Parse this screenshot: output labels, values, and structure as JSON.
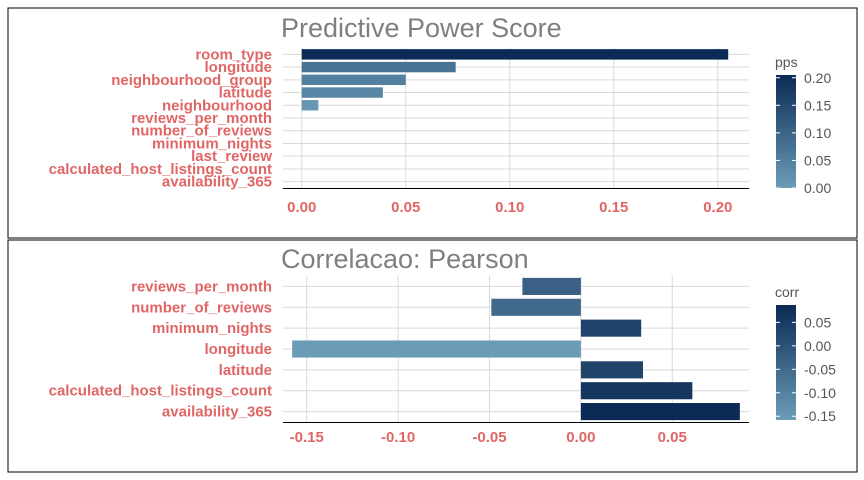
{
  "colors": {
    "low": "#6b9cb7",
    "high": "#0b2a55",
    "label": "#e06666",
    "title": "#7f7f7f"
  },
  "chart_data": [
    {
      "type": "bar",
      "orientation": "horizontal",
      "title": "Predictive Power Score",
      "categories": [
        "room_type",
        "longitude",
        "neighbourhood_group",
        "latitude",
        "neighbourhood",
        "reviews_per_month",
        "number_of_reviews",
        "minimum_nights",
        "last_review",
        "calculated_host_listings_count",
        "availability_365"
      ],
      "values": [
        0.205,
        0.074,
        0.05,
        0.039,
        0.008,
        0,
        0,
        0,
        0,
        0,
        0
      ],
      "xlim": [
        -0.009,
        0.215
      ],
      "xticks": [
        0.0,
        0.05,
        0.1,
        0.15,
        0.2
      ],
      "xtick_labels": [
        "0.00",
        "0.05",
        "0.10",
        "0.15",
        "0.20"
      ],
      "grid": true,
      "legend": {
        "title": "pps",
        "position": "right",
        "range": [
          0.0,
          0.205
        ],
        "ticks": [
          0.0,
          0.05,
          0.1,
          0.15,
          0.2
        ],
        "tick_labels": [
          "0.00",
          "0.05",
          "0.10",
          "0.15",
          "0.20"
        ]
      }
    },
    {
      "type": "bar",
      "orientation": "horizontal",
      "title": "Correlacao: Pearson",
      "categories": [
        "reviews_per_month",
        "number_of_reviews",
        "minimum_nights",
        "longitude",
        "latitude",
        "calculated_host_listings_count",
        "availability_365"
      ],
      "values": [
        -0.032,
        -0.049,
        0.033,
        -0.158,
        0.034,
        0.061,
        0.087
      ],
      "xlim": [
        -0.163,
        0.092
      ],
      "xticks": [
        -0.15,
        -0.1,
        -0.05,
        0.0,
        0.05
      ],
      "xtick_labels": [
        "-0.15",
        "-0.10",
        "-0.05",
        "0.00",
        "0.05"
      ],
      "grid": true,
      "legend": {
        "title": "corr",
        "position": "right",
        "range": [
          -0.158,
          0.087
        ],
        "ticks": [
          0.05,
          0.0,
          -0.05,
          -0.1,
          -0.15
        ],
        "tick_labels": [
          "0.05",
          "0.00",
          "-0.05",
          "-0.10",
          "-0.15"
        ]
      }
    }
  ]
}
